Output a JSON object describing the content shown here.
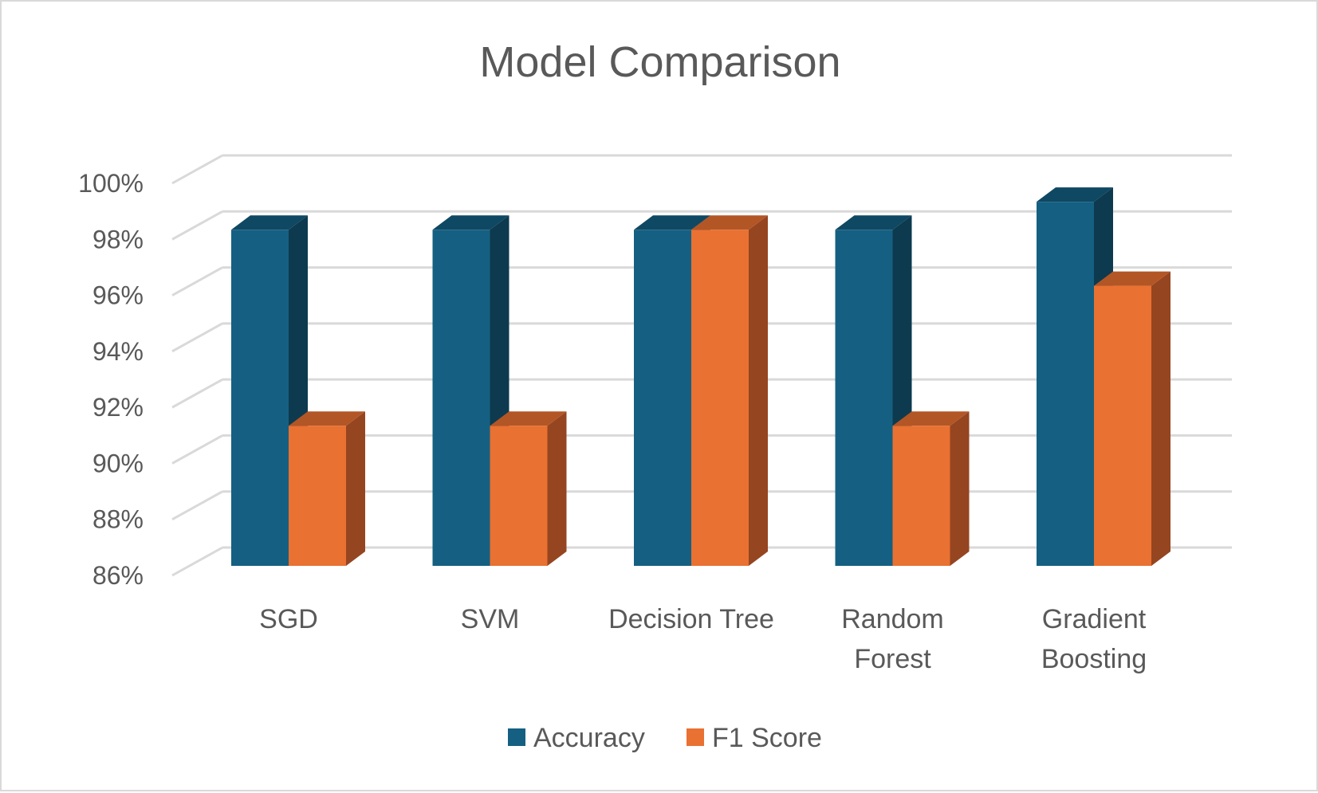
{
  "chart_data": {
    "type": "bar",
    "title": "Model Comparison",
    "xlabel": "",
    "ylabel": "",
    "categories": [
      [
        "SGD"
      ],
      [
        "SVM"
      ],
      [
        "Decision Tree"
      ],
      [
        "Random",
        "Forest"
      ],
      [
        "Gradient",
        "Boosting"
      ]
    ],
    "series": [
      {
        "name": "Accuracy",
        "values": [
          98,
          98,
          98,
          98,
          99
        ],
        "color": "#156082",
        "side_color": "#0d3a4f",
        "top_color": "#0f4862"
      },
      {
        "name": "F1 Score",
        "values": [
          91,
          91,
          98,
          91,
          96
        ],
        "color": "#e97132",
        "side_color": "#954520",
        "top_color": "#b35626"
      }
    ],
    "ylim": [
      86,
      100
    ],
    "yticks": [
      86,
      88,
      90,
      92,
      94,
      96,
      98,
      100
    ],
    "ytick_labels": [
      "86%",
      "88%",
      "90%",
      "92%",
      "94%",
      "96%",
      "98%",
      "100%"
    ],
    "grid": true,
    "legend": "bottom",
    "style": "3d-clustered-column"
  }
}
